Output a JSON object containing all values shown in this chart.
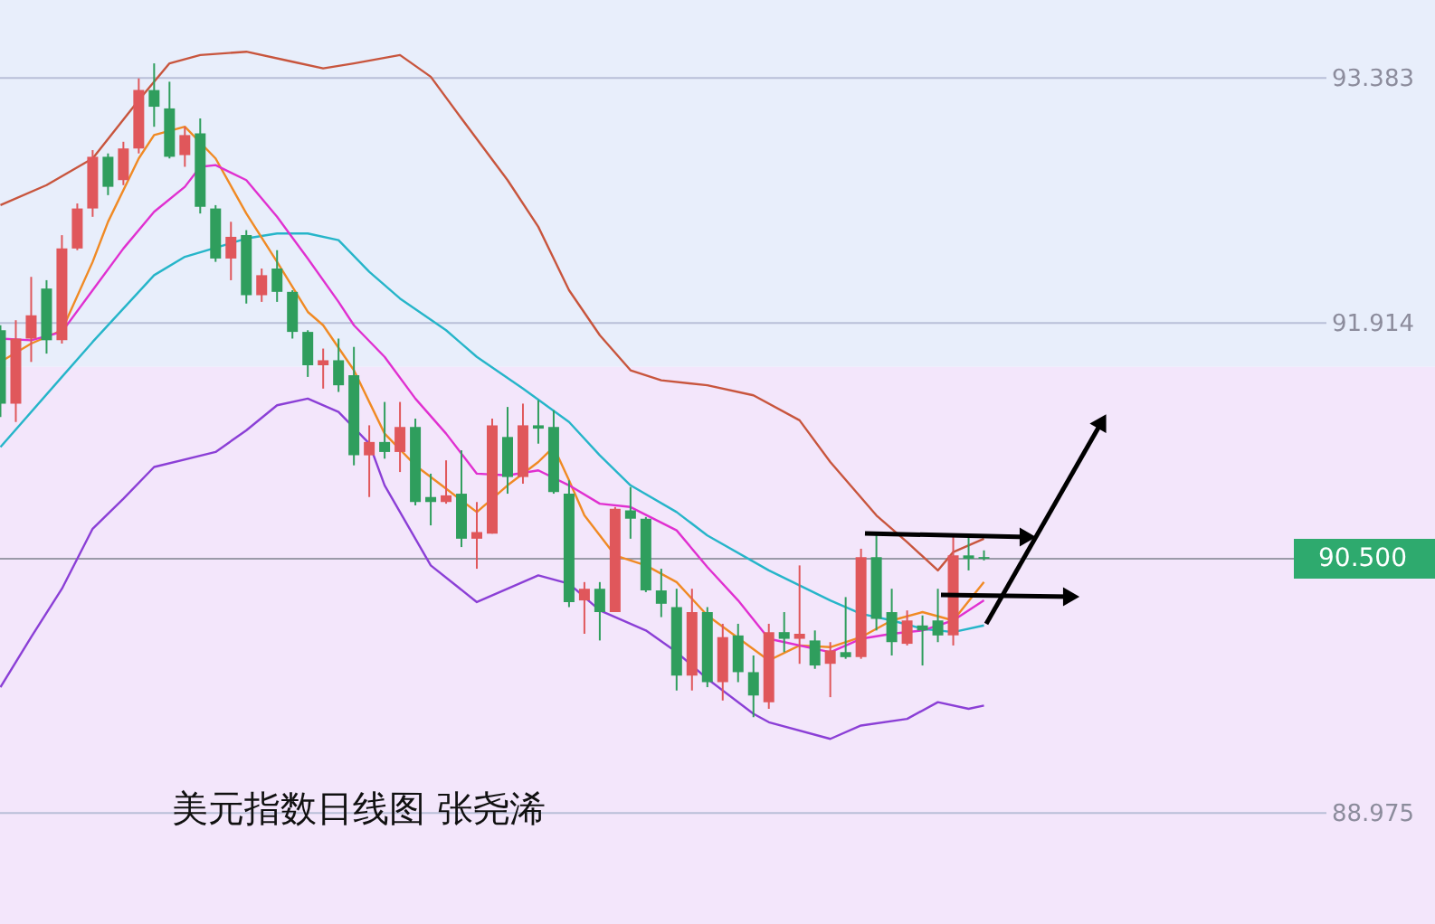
{
  "chart_data": {
    "type": "candlestick",
    "categories": [
      null,
      null,
      null,
      null,
      null,
      null,
      null,
      null,
      null,
      null,
      null,
      null,
      null,
      null,
      null,
      null,
      null,
      null,
      null,
      null,
      null,
      null,
      null,
      null,
      null,
      null,
      null,
      null,
      null,
      null,
      null,
      null,
      null,
      null,
      null,
      null,
      null,
      null,
      null,
      null,
      null,
      null,
      null,
      null,
      null,
      null,
      null,
      null,
      null,
      null,
      null,
      null,
      null,
      null,
      null,
      null,
      null,
      null,
      null,
      null,
      null,
      null,
      null,
      null,
      null
    ],
    "ohlc": [
      [
        91.87,
        91.9,
        91.35,
        91.43
      ],
      [
        91.43,
        91.93,
        91.32,
        91.82
      ],
      [
        91.82,
        92.19,
        91.68,
        91.96
      ],
      [
        92.12,
        92.17,
        91.73,
        91.81
      ],
      [
        91.81,
        92.44,
        91.79,
        92.36
      ],
      [
        92.36,
        92.63,
        92.35,
        92.6
      ],
      [
        92.6,
        92.95,
        92.55,
        92.91
      ],
      [
        92.91,
        92.93,
        92.68,
        92.73
      ],
      [
        92.77,
        93.0,
        92.74,
        92.96
      ],
      [
        92.96,
        93.38,
        92.93,
        93.31
      ],
      [
        93.31,
        93.47,
        93.09,
        93.21
      ],
      [
        93.2,
        93.36,
        92.9,
        92.91
      ],
      [
        92.92,
        93.09,
        92.85,
        93.04
      ],
      [
        93.05,
        93.14,
        92.57,
        92.61
      ],
      [
        92.6,
        92.62,
        92.28,
        92.3
      ],
      [
        92.3,
        92.52,
        92.17,
        92.43
      ],
      [
        92.44,
        92.47,
        92.03,
        92.08
      ],
      [
        92.08,
        92.24,
        92.04,
        92.2
      ],
      [
        92.24,
        92.35,
        92.04,
        92.1
      ],
      [
        92.1,
        92.11,
        91.82,
        91.86
      ],
      [
        91.86,
        91.87,
        91.59,
        91.66
      ],
      [
        91.66,
        91.76,
        91.52,
        91.69
      ],
      [
        91.69,
        91.82,
        91.5,
        91.54
      ],
      [
        91.6,
        91.77,
        91.06,
        91.12
      ],
      [
        91.12,
        91.3,
        90.87,
        91.2
      ],
      [
        91.2,
        91.44,
        91.1,
        91.14
      ],
      [
        91.14,
        91.44,
        91.02,
        91.29
      ],
      [
        91.29,
        91.34,
        90.82,
        90.84
      ],
      [
        90.87,
        91.01,
        90.7,
        90.84
      ],
      [
        90.84,
        91.09,
        90.83,
        90.88
      ],
      [
        90.89,
        91.15,
        90.57,
        90.62
      ],
      [
        90.62,
        90.84,
        90.44,
        90.66
      ],
      [
        90.65,
        91.34,
        90.65,
        91.3
      ],
      [
        91.23,
        91.41,
        90.89,
        90.99
      ],
      [
        90.99,
        91.43,
        90.95,
        91.3
      ],
      [
        91.3,
        91.45,
        91.19,
        91.28
      ],
      [
        91.29,
        91.39,
        90.89,
        90.9
      ],
      [
        90.89,
        90.97,
        90.21,
        90.24
      ],
      [
        90.25,
        90.36,
        90.05,
        90.32
      ],
      [
        90.32,
        90.36,
        90.01,
        90.18
      ],
      [
        90.18,
        90.81,
        90.18,
        90.8
      ],
      [
        90.79,
        90.93,
        90.62,
        90.74
      ],
      [
        90.74,
        90.75,
        90.3,
        90.31
      ],
      [
        90.31,
        90.44,
        90.15,
        90.23
      ],
      [
        90.21,
        90.32,
        89.71,
        89.8
      ],
      [
        89.8,
        90.32,
        89.71,
        90.18
      ],
      [
        90.18,
        90.21,
        89.73,
        89.76
      ],
      [
        89.76,
        90.11,
        89.65,
        90.03
      ],
      [
        90.04,
        90.11,
        89.76,
        89.82
      ],
      [
        89.82,
        89.92,
        89.55,
        89.68
      ],
      [
        89.64,
        90.11,
        89.6,
        90.06
      ],
      [
        90.06,
        90.18,
        89.94,
        90.02
      ],
      [
        90.02,
        90.46,
        89.87,
        90.05
      ],
      [
        90.01,
        90.07,
        89.84,
        89.86
      ],
      [
        89.87,
        90.0,
        89.67,
        89.95
      ],
      [
        89.94,
        90.27,
        89.9,
        89.91
      ],
      [
        89.91,
        90.56,
        89.9,
        90.51
      ],
      [
        90.51,
        90.65,
        90.07,
        90.14
      ],
      [
        90.18,
        90.32,
        89.92,
        90.0
      ],
      [
        89.99,
        90.19,
        89.98,
        90.13
      ],
      [
        90.1,
        90.16,
        89.86,
        90.07
      ],
      [
        90.13,
        90.32,
        90.0,
        90.04
      ],
      [
        90.04,
        90.63,
        89.98,
        90.52
      ],
      [
        90.52,
        90.63,
        90.43,
        90.5
      ],
      [
        90.51,
        90.55,
        90.49,
        90.5
      ]
    ],
    "colors": [
      "#2f9e5d",
      "#e0575b",
      "#e0575b",
      "#2f9e5d",
      "#e0575b",
      "#e0575b",
      "#e0575b",
      "#2f9e5d",
      "#e0575b",
      "#e0575b",
      "#2f9e5d",
      "#2f9e5d",
      "#e0575b",
      "#2f9e5d",
      "#2f9e5d",
      "#e0575b",
      "#2f9e5d",
      "#e0575b",
      "#2f9e5d",
      "#2f9e5d",
      "#2f9e5d",
      "#e0575b",
      "#2f9e5d",
      "#2f9e5d",
      "#e0575b",
      "#2f9e5d",
      "#e0575b",
      "#2f9e5d",
      "#2f9e5d",
      "#e0575b",
      "#2f9e5d",
      "#e0575b",
      "#e0575b",
      "#2f9e5d",
      "#e0575b",
      "#2f9e5d",
      "#2f9e5d",
      "#2f9e5d",
      "#e0575b",
      "#2f9e5d",
      "#e0575b",
      "#2f9e5d",
      "#2f9e5d",
      "#2f9e5d",
      "#2f9e5d",
      "#e0575b",
      "#2f9e5d",
      "#e0575b",
      "#2f9e5d",
      "#2f9e5d",
      "#e0575b",
      "#2f9e5d",
      "#e0575b",
      "#2f9e5d",
      "#e0575b",
      "#2f9e5d",
      "#e0575b",
      "#2f9e5d",
      "#2f9e5d",
      "#e0575b",
      "#2f9e5d",
      "#2f9e5d",
      "#e0575b",
      "#2f9e5d",
      "#2f9e5d"
    ],
    "series": [
      {
        "type": "line",
        "color": "#c8553d",
        "values": [
          92.62,
          null,
          null,
          92.74,
          null,
          null,
          92.9,
          null,
          null,
          93.25,
          null,
          93.47,
          null,
          93.52,
          null,
          null,
          93.54,
          null,
          null,
          93.48,
          null,
          93.44,
          null,
          93.47,
          null,
          null,
          93.52,
          null,
          93.39,
          null,
          93.14,
          null,
          null,
          92.77,
          null,
          92.49,
          null,
          92.11,
          null,
          91.84,
          null,
          91.63,
          null,
          91.57,
          null,
          null,
          91.54,
          null,
          null,
          91.48,
          null,
          null,
          91.33,
          null,
          91.08,
          null,
          null,
          90.76,
          null,
          90.6,
          null,
          90.43,
          90.54,
          null,
          90.62
        ]
      },
      {
        "type": "line",
        "color": "#26b5c9",
        "values": [
          91.17,
          null,
          null,
          null,
          91.59,
          null,
          91.8,
          null,
          null,
          null,
          92.2,
          null,
          92.31,
          null,
          null,
          null,
          92.42,
          null,
          92.45,
          null,
          92.45,
          null,
          92.41,
          null,
          92.22,
          null,
          92.06,
          null,
          null,
          91.87,
          null,
          91.71,
          null,
          null,
          91.52,
          null,
          null,
          91.32,
          null,
          91.12,
          null,
          90.94,
          null,
          null,
          90.78,
          null,
          90.64,
          null,
          null,
          null,
          90.43,
          null,
          null,
          null,
          90.25,
          null,
          90.17,
          null,
          90.13,
          null,
          90.08,
          null,
          90.06,
          null,
          90.1
        ]
      },
      {
        "type": "line",
        "color": "#8b3fd6",
        "values": [
          89.73,
          null,
          90.03,
          null,
          90.32,
          null,
          90.68,
          null,
          90.86,
          null,
          91.05,
          null,
          null,
          null,
          91.14,
          null,
          91.27,
          null,
          91.42,
          null,
          91.46,
          null,
          91.38,
          null,
          91.19,
          90.94,
          null,
          null,
          90.46,
          null,
          null,
          90.24,
          null,
          90.32,
          null,
          90.4,
          null,
          90.35,
          null,
          90.19,
          null,
          null,
          90.07,
          null,
          89.94,
          null,
          89.78,
          null,
          null,
          89.57,
          89.52,
          null,
          null,
          null,
          89.42,
          null,
          89.5,
          null,
          null,
          89.54,
          null,
          89.64,
          null,
          89.6,
          89.62
        ]
      },
      {
        "type": "line",
        "color": "#f08a24",
        "values": [
          91.68,
          null,
          91.79,
          null,
          91.87,
          null,
          92.28,
          92.52,
          null,
          92.9,
          93.04,
          null,
          93.09,
          null,
          92.9,
          null,
          92.57,
          null,
          92.28,
          null,
          91.98,
          91.9,
          null,
          91.63,
          null,
          91.25,
          null,
          91.06,
          null,
          90.92,
          null,
          90.78,
          null,
          90.94,
          null,
          91.08,
          91.17,
          90.97,
          90.76,
          null,
          90.52,
          null,
          90.46,
          null,
          90.36,
          null,
          90.16,
          null,
          null,
          null,
          89.89,
          null,
          89.98,
          null,
          89.97,
          null,
          90.03,
          null,
          90.13,
          null,
          90.18,
          null,
          90.13,
          null,
          90.36
        ]
      },
      {
        "type": "line",
        "color": "#e030d0",
        "values": [
          91.82,
          null,
          91.81,
          null,
          91.86,
          null,
          92.11,
          null,
          92.36,
          null,
          92.58,
          null,
          92.73,
          92.85,
          92.86,
          null,
          92.77,
          null,
          92.55,
          null,
          92.3,
          null,
          92.04,
          91.9,
          null,
          91.71,
          null,
          91.46,
          null,
          91.25,
          null,
          91.01,
          null,
          91.0,
          null,
          91.03,
          null,
          90.94,
          null,
          90.83,
          null,
          90.81,
          null,
          null,
          90.67,
          null,
          90.45,
          null,
          90.25,
          null,
          90.02,
          null,
          null,
          null,
          89.94,
          null,
          90.02,
          null,
          90.05,
          null,
          90.07,
          null,
          90.13,
          null,
          90.25
        ]
      }
    ],
    "ylim": [
      88.31,
      93.85
    ],
    "yticks": [
      88.975,
      91.914,
      93.383
    ],
    "grid": "y",
    "tick_labels": "y",
    "bands": [
      {
        "axis": "y",
        "from": 91.65,
        "to": 93.85,
        "color": "#e8eefb"
      },
      {
        "axis": "y",
        "from": 88.31,
        "to": 91.65,
        "color": "#f3e6fb"
      }
    ],
    "ref_lines": [
      {
        "axis": "y",
        "value": 90.5,
        "label": "90.500",
        "color": "#9a9aa8"
      }
    ],
    "annotations": [
      "美元指数日线图 张尧浠"
    ]
  }
}
